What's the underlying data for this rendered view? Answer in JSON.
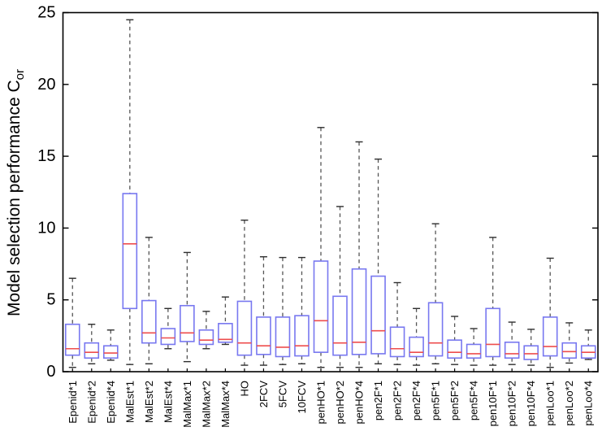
{
  "figure": {
    "background": "#ffffff",
    "ylabel": {
      "main": "Model selection performance C",
      "sub": "or"
    }
  },
  "chart_data": {
    "type": "boxplot",
    "title": "",
    "xlabel": "",
    "ylabel": "Model selection performance C_or",
    "ylim": [
      0,
      25
    ],
    "yticks": [
      0,
      5,
      10,
      15,
      20,
      25
    ],
    "grid": false,
    "legend": "none",
    "categories": [
      "Epenid*1",
      "Epenid*2",
      "Epenid*4",
      "MalEst*1",
      "MalEst*2",
      "MalEst*4",
      "MalMax*1",
      "MalMax*2",
      "MalMax*4",
      "HO",
      "2FCV",
      "5FCV",
      "10FCV",
      "penHO*1",
      "penHO*2",
      "penHO*4",
      "pen2F*1",
      "pen2F*2",
      "pen2F*4",
      "pen5F*1",
      "pen5F*2",
      "pen5F*4",
      "pen10F*1",
      "pen10F*2",
      "pen10F*4",
      "penLoo*1",
      "penLoo*2",
      "penLoo*4"
    ],
    "series": [
      {
        "name": "model-selection-performance-boxes",
        "whislo": [
          0.3,
          0.55,
          0.8,
          0.5,
          0.55,
          1.6,
          0.7,
          1.6,
          1.9,
          0.45,
          0.45,
          0.5,
          0.55,
          0.3,
          0.3,
          0.3,
          0.55,
          0.5,
          0.45,
          0.55,
          0.5,
          0.45,
          0.45,
          0.5,
          0.45,
          0.3,
          0.6,
          0.85
        ],
        "q1": [
          1.15,
          0.95,
          0.95,
          4.4,
          2.0,
          1.9,
          2.1,
          1.9,
          2.05,
          1.15,
          1.2,
          1.05,
          1.1,
          1.35,
          1.15,
          1.2,
          1.25,
          1.05,
          1.05,
          1.1,
          0.95,
          0.95,
          1.05,
          0.95,
          0.85,
          1.1,
          0.95,
          0.95
        ],
        "med": [
          1.6,
          1.35,
          1.3,
          8.9,
          2.7,
          2.35,
          2.7,
          2.2,
          2.25,
          2.0,
          1.8,
          1.7,
          1.8,
          3.55,
          2.0,
          2.05,
          2.85,
          1.6,
          1.35,
          2.0,
          1.35,
          1.25,
          1.9,
          1.25,
          1.25,
          1.75,
          1.4,
          1.35
        ],
        "q3": [
          3.3,
          2.0,
          1.8,
          12.4,
          4.95,
          3.0,
          4.6,
          2.9,
          3.35,
          4.9,
          3.8,
          3.8,
          3.9,
          7.7,
          5.25,
          7.15,
          6.65,
          3.1,
          2.4,
          4.8,
          2.2,
          1.9,
          4.4,
          2.05,
          1.8,
          3.8,
          2.0,
          1.8
        ],
        "whishi": [
          6.5,
          3.3,
          2.9,
          24.5,
          9.35,
          4.4,
          8.3,
          4.2,
          5.2,
          10.55,
          8.0,
          7.95,
          7.95,
          17.0,
          11.5,
          16.0,
          14.8,
          6.2,
          4.4,
          10.3,
          3.85,
          3.0,
          9.35,
          3.45,
          2.95,
          7.9,
          3.4,
          2.9
        ]
      }
    ],
    "colors": {
      "box": "#7878f0",
      "median": "#ee4e4e",
      "whisker": "#555555",
      "cap": "#2e2e2e",
      "axis": "#000000",
      "text": "#000000"
    }
  }
}
